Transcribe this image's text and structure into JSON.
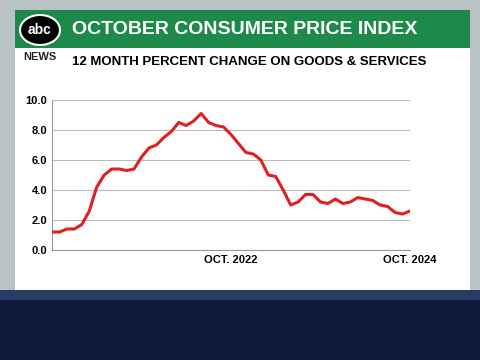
{
  "chart_data": {
    "type": "line",
    "title": "OCTOBER CONSUMER PRICE INDEX",
    "subtitle": "12 MONTH PERCENT CHANGE ON GOODS & SERVICES",
    "annotations": [
      "abc",
      "NEWS"
    ],
    "categories": [
      null,
      null,
      null,
      null,
      null,
      null,
      null,
      null,
      null,
      null,
      null,
      null,
      null,
      null,
      null,
      null,
      null,
      null,
      null,
      null,
      null,
      null,
      null,
      null,
      "OCT. 2022",
      null,
      null,
      null,
      null,
      null,
      null,
      null,
      null,
      null,
      null,
      null,
      null,
      null,
      null,
      null,
      null,
      null,
      null,
      null,
      null,
      null,
      null,
      null,
      "OCT. 2024"
    ],
    "values": [
      1.2,
      1.2,
      1.4,
      1.4,
      1.7,
      2.6,
      4.2,
      5.0,
      5.4,
      5.4,
      5.3,
      5.4,
      6.2,
      6.8,
      7.0,
      7.5,
      7.9,
      8.5,
      8.3,
      8.6,
      9.1,
      8.5,
      8.3,
      8.2,
      7.7,
      7.1,
      6.5,
      6.4,
      6.0,
      5.0,
      4.9,
      4.0,
      3.0,
      3.2,
      3.7,
      3.7,
      3.2,
      3.1,
      3.4,
      3.1,
      3.2,
      3.5,
      3.4,
      3.3,
      3.0,
      2.9,
      2.5,
      2.4,
      2.6
    ],
    "color": "#e02020",
    "ylim": [
      0,
      10
    ],
    "yticks": [
      {
        "value": 0,
        "label": "0.0"
      },
      {
        "value": 2,
        "label": "2.0"
      },
      {
        "value": 4,
        "label": "4.0"
      },
      {
        "value": 6,
        "label": "6.0"
      },
      {
        "value": 8,
        "label": "8.0"
      },
      {
        "value": 10,
        "label": "10.0"
      }
    ],
    "grid": true
  }
}
